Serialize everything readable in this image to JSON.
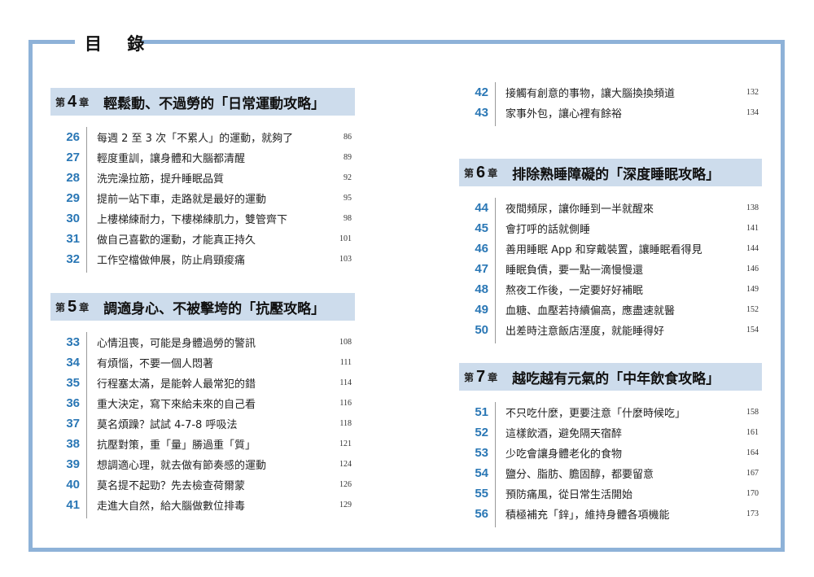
{
  "title": "目 錄",
  "accent": "#2a77b5",
  "frame_color": "#8eb2d8",
  "chapters": [
    {
      "pre": "第",
      "num": "4",
      "post": "章",
      "name": "輕鬆動、不過勞的「日常運動攻略」",
      "items": [
        {
          "n": "26",
          "t": "每週 2 至 3 次「不累人」的運動，就夠了",
          "p": "86"
        },
        {
          "n": "27",
          "t": "輕度重訓，讓身體和大腦都清醒",
          "p": "89"
        },
        {
          "n": "28",
          "t": "洗完澡拉筋，提升睡眠品質",
          "p": "92"
        },
        {
          "n": "29",
          "t": "提前一站下車，走路就是最好的運動",
          "p": "95"
        },
        {
          "n": "30",
          "t": "上樓梯練耐力，下樓梯練肌力，雙管齊下",
          "p": "98"
        },
        {
          "n": "31",
          "t": "做自己喜歡的運動，才能真正持久",
          "p": "101"
        },
        {
          "n": "32",
          "t": "工作空檔做伸展，防止肩頸痠痛",
          "p": "103"
        }
      ]
    },
    {
      "pre": "第",
      "num": "5",
      "post": "章",
      "name": "調適身心、不被擊垮的「抗壓攻略」",
      "items": [
        {
          "n": "33",
          "t": "心情沮喪，可能是身體過勞的警訊",
          "p": "108"
        },
        {
          "n": "34",
          "t": "有煩惱，不要一個人悶著",
          "p": "111"
        },
        {
          "n": "35",
          "t": "行程塞太滿，是能幹人最常犯的錯",
          "p": "114"
        },
        {
          "n": "36",
          "t": "重大決定，寫下來給未來的自己看",
          "p": "116"
        },
        {
          "n": "37",
          "t": "莫名煩躁？試試 4-7-8 呼吸法",
          "p": "118"
        },
        {
          "n": "38",
          "t": "抗壓對策，重「量」勝過重「質」",
          "p": "121"
        },
        {
          "n": "39",
          "t": "想調適心理，就去做有節奏感的運動",
          "p": "124"
        },
        {
          "n": "40",
          "t": "莫名提不起勁？先去檢查荷爾蒙",
          "p": "126"
        },
        {
          "n": "41",
          "t": "走進大自然，給大腦做數位排毒",
          "p": "129"
        },
        {
          "n": "42",
          "t": "接觸有創意的事物，讓大腦換換頻道",
          "p": "132"
        },
        {
          "n": "43",
          "t": "家事外包，讓心裡有餘裕",
          "p": "134"
        }
      ]
    },
    {
      "pre": "第",
      "num": "6",
      "post": "章",
      "name": "排除熟睡障礙的「深度睡眠攻略」",
      "items": [
        {
          "n": "44",
          "t": "夜間頻尿，讓你睡到一半就醒來",
          "p": "138"
        },
        {
          "n": "45",
          "t": "會打呼的話就側睡",
          "p": "141"
        },
        {
          "n": "46",
          "t": "善用睡眠 App 和穿戴裝置，讓睡眠看得見",
          "p": "144"
        },
        {
          "n": "47",
          "t": "睡眠負債，要一點一滴慢慢還",
          "p": "146"
        },
        {
          "n": "48",
          "t": "熬夜工作後，一定要好好補眠",
          "p": "149"
        },
        {
          "n": "49",
          "t": "血糖、血壓若持續偏高，應盡速就醫",
          "p": "152"
        },
        {
          "n": "50",
          "t": "出差時注意飯店溼度，就能睡得好",
          "p": "154"
        }
      ]
    },
    {
      "pre": "第",
      "num": "7",
      "post": "章",
      "name": "越吃越有元氣的「中年飲食攻略」",
      "items": [
        {
          "n": "51",
          "t": "不只吃什麼，更要注意「什麼時候吃」",
          "p": "158"
        },
        {
          "n": "52",
          "t": "這樣飲酒，避免隔天宿醉",
          "p": "161"
        },
        {
          "n": "53",
          "t": "少吃會讓身體老化的食物",
          "p": "164"
        },
        {
          "n": "54",
          "t": "鹽分、脂肪、膽固醇，都要留意",
          "p": "167"
        },
        {
          "n": "55",
          "t": "預防痛風，從日常生活開始",
          "p": "170"
        },
        {
          "n": "56",
          "t": "積極補充「鋅」，維持身體各項機能",
          "p": "173"
        }
      ]
    }
  ]
}
